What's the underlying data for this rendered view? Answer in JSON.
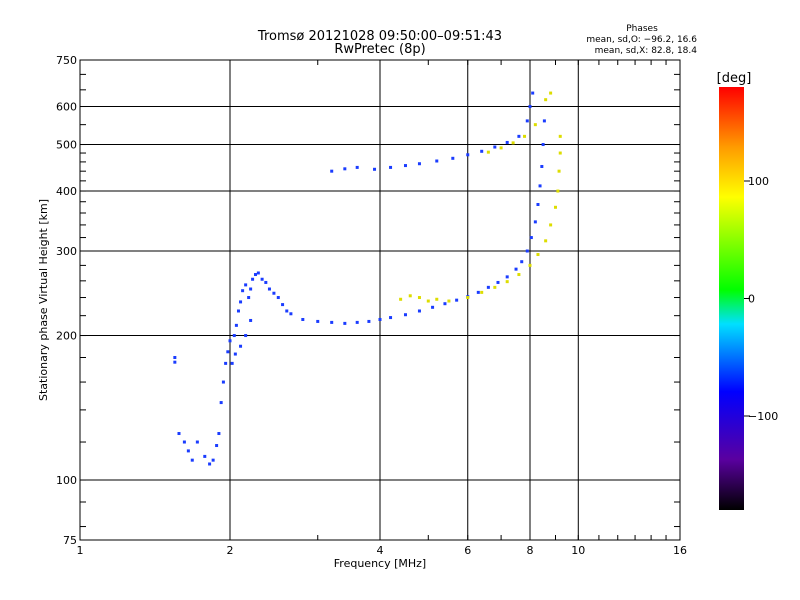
{
  "chart_data": {
    "type": "scatter",
    "title": "Tromsø 20121028 09:50:00–09:51:43",
    "subtitle": "RwPretec (8p)",
    "xlabel": "Frequency [MHz]",
    "ylabel": "Stationary phase Virtual Height [km]",
    "xscale": "log",
    "yscale": "log",
    "xlim": [
      1,
      16
    ],
    "ylim": [
      75,
      750
    ],
    "grid": true,
    "x_ticks": [
      1,
      2,
      4,
      6,
      8,
      10,
      16
    ],
    "x_tick_labels": [
      "1",
      "2",
      "4",
      "6",
      "8",
      "10",
      "16"
    ],
    "y_ticks": [
      75,
      100,
      200,
      300,
      400,
      500,
      600,
      750
    ],
    "y_tick_labels": [
      "75",
      "100",
      "200",
      "300",
      "400",
      "500",
      "600",
      "750"
    ],
    "x_gridlines": [
      2,
      4,
      6,
      8,
      10
    ],
    "y_gridlines": [
      100,
      200,
      300,
      400,
      500,
      600
    ],
    "phase_stats": {
      "heading": "Phases",
      "line_o": "mean, sd,O: −96.2, 16.6",
      "line_x": "mean, sd,X:  82.8, 18.4"
    },
    "colorbar": {
      "label": "[deg]",
      "range": [
        -180,
        180
      ],
      "ticks": [
        100,
        0,
        -100
      ],
      "tick_labels": [
        "100",
        "0",
        "−100"
      ]
    },
    "series": [
      {
        "mode": "O",
        "phase_deg": -100,
        "points": [
          [
            1.55,
            180
          ],
          [
            1.55,
            176
          ],
          [
            1.58,
            125
          ],
          [
            1.62,
            120
          ],
          [
            1.65,
            115
          ],
          [
            1.68,
            110
          ],
          [
            1.72,
            120
          ],
          [
            1.78,
            112
          ],
          [
            1.82,
            108
          ],
          [
            1.85,
            110
          ],
          [
            1.88,
            118
          ],
          [
            1.9,
            125
          ],
          [
            1.92,
            145
          ],
          [
            1.94,
            160
          ],
          [
            1.96,
            175
          ],
          [
            1.98,
            185
          ],
          [
            2.0,
            195
          ],
          [
            2.02,
            175
          ],
          [
            2.04,
            200
          ],
          [
            2.06,
            210
          ],
          [
            2.08,
            225
          ],
          [
            2.1,
            235
          ],
          [
            2.12,
            248
          ],
          [
            2.15,
            255
          ],
          [
            2.18,
            240
          ],
          [
            2.2,
            250
          ],
          [
            2.22,
            262
          ],
          [
            2.25,
            268
          ],
          [
            2.28,
            270
          ],
          [
            2.32,
            262
          ],
          [
            2.36,
            258
          ],
          [
            2.4,
            250
          ],
          [
            2.45,
            245
          ],
          [
            2.5,
            240
          ],
          [
            2.55,
            232
          ],
          [
            2.6,
            225
          ],
          [
            2.65,
            222
          ],
          [
            2.05,
            183
          ],
          [
            2.1,
            190
          ],
          [
            2.15,
            200
          ],
          [
            2.2,
            215
          ],
          [
            2.8,
            216
          ],
          [
            3.0,
            214
          ],
          [
            3.2,
            213
          ],
          [
            3.4,
            212
          ],
          [
            3.6,
            213
          ],
          [
            3.8,
            214
          ],
          [
            4.0,
            216
          ],
          [
            4.2,
            218
          ],
          [
            4.5,
            221
          ],
          [
            4.8,
            225
          ],
          [
            5.1,
            229
          ],
          [
            5.4,
            233
          ],
          [
            5.7,
            237
          ],
          [
            6.0,
            241
          ],
          [
            6.3,
            246
          ],
          [
            6.6,
            252
          ],
          [
            6.9,
            258
          ],
          [
            7.2,
            265
          ],
          [
            7.5,
            275
          ],
          [
            7.7,
            285
          ],
          [
            7.9,
            300
          ],
          [
            8.05,
            320
          ],
          [
            8.2,
            345
          ],
          [
            8.3,
            375
          ],
          [
            8.38,
            410
          ],
          [
            8.45,
            450
          ],
          [
            8.5,
            500
          ],
          [
            8.55,
            560
          ],
          [
            3.2,
            440
          ],
          [
            3.4,
            445
          ],
          [
            3.6,
            448
          ],
          [
            3.9,
            444
          ],
          [
            4.2,
            448
          ],
          [
            4.5,
            452
          ],
          [
            4.8,
            456
          ],
          [
            5.2,
            462
          ],
          [
            5.6,
            468
          ],
          [
            6.0,
            476
          ],
          [
            6.4,
            484
          ],
          [
            6.8,
            494
          ],
          [
            7.2,
            505
          ],
          [
            7.6,
            520
          ],
          [
            7.9,
            560
          ],
          [
            8.0,
            600
          ],
          [
            8.1,
            640
          ]
        ]
      },
      {
        "mode": "X",
        "phase_deg": 85,
        "points": [
          [
            4.4,
            238
          ],
          [
            4.6,
            242
          ],
          [
            4.8,
            240
          ],
          [
            5.0,
            236
          ],
          [
            5.2,
            238
          ],
          [
            5.5,
            236
          ],
          [
            6.0,
            240
          ],
          [
            6.4,
            246
          ],
          [
            6.8,
            252
          ],
          [
            7.2,
            259
          ],
          [
            7.6,
            268
          ],
          [
            8.0,
            280
          ],
          [
            8.3,
            295
          ],
          [
            8.6,
            315
          ],
          [
            8.8,
            340
          ],
          [
            9.0,
            370
          ],
          [
            9.1,
            400
          ],
          [
            9.15,
            440
          ],
          [
            9.2,
            480
          ],
          [
            9.2,
            520
          ],
          [
            6.6,
            482
          ],
          [
            7.0,
            492
          ],
          [
            7.4,
            504
          ],
          [
            7.8,
            520
          ],
          [
            8.6,
            620
          ],
          [
            8.8,
            640
          ],
          [
            8.2,
            550
          ]
        ]
      }
    ]
  }
}
